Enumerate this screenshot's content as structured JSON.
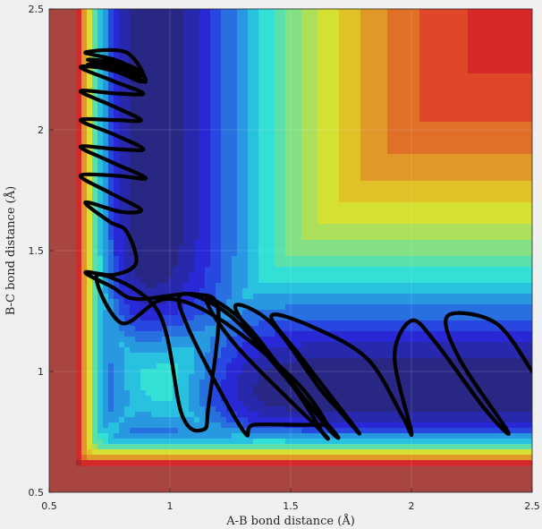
{
  "chart_data": {
    "type": "heatmap",
    "title": "",
    "xlabel": "A-B bond distance (Å)",
    "ylabel": "B-C bond distance (Å)",
    "xlim": [
      0.5,
      2.5
    ],
    "ylim": [
      0.5,
      2.5
    ],
    "xticks": [
      0.5,
      1,
      1.5,
      2,
      2.5
    ],
    "yticks": [
      0.5,
      1,
      1.5,
      2,
      2.5
    ],
    "xtick_labels": [
      "0.5",
      "1",
      "1.5",
      "2",
      "2.5"
    ],
    "ytick_labels": [
      "0.5",
      "1",
      "1.5",
      "2",
      "2.5"
    ],
    "grid": true,
    "colormap": "jet",
    "surface": "Potential energy surface (filled contours), minimum valley near A-B ≈ 1.9, B-C ≈ 0.93",
    "trajectory": {
      "color": "#000000",
      "points": [
        [
          2.5,
          1.0
        ],
        [
          2.35,
          1.2
        ],
        [
          2.15,
          1.23
        ],
        [
          2.2,
          1.05
        ],
        [
          2.4,
          0.75
        ],
        [
          2.3,
          0.85
        ],
        [
          2.1,
          1.12
        ],
        [
          2.0,
          1.21
        ],
        [
          1.93,
          1.06
        ],
        [
          2.0,
          0.75
        ],
        [
          1.96,
          0.82
        ],
        [
          1.82,
          1.05
        ],
        [
          1.6,
          1.18
        ],
        [
          1.42,
          1.23
        ],
        [
          1.55,
          1.05
        ],
        [
          1.78,
          0.75
        ],
        [
          1.7,
          0.84
        ],
        [
          1.62,
          0.93
        ],
        [
          1.42,
          1.2
        ],
        [
          1.27,
          1.27
        ],
        [
          1.4,
          1.07
        ],
        [
          1.68,
          0.75
        ],
        [
          1.65,
          0.77
        ],
        [
          1.5,
          0.96
        ],
        [
          1.3,
          1.21
        ],
        [
          1.15,
          1.3
        ],
        [
          1.28,
          1.1
        ],
        [
          1.62,
          0.76
        ],
        [
          1.63,
          0.75
        ],
        [
          1.5,
          0.95
        ],
        [
          1.25,
          1.23
        ],
        [
          1.05,
          1.32
        ],
        [
          1.08,
          1.17
        ],
        [
          1.3,
          0.76
        ],
        [
          1.35,
          0.78
        ],
        [
          1.6,
          0.78
        ],
        [
          1.64,
          0.8
        ],
        [
          1.5,
          0.98
        ],
        [
          1.2,
          1.22
        ],
        [
          0.98,
          1.3
        ],
        [
          0.8,
          1.2
        ],
        [
          0.7,
          1.4
        ],
        [
          0.95,
          1.25
        ],
        [
          1.05,
          0.82
        ],
        [
          1.14,
          0.76
        ],
        [
          1.16,
          0.86
        ],
        [
          1.2,
          1.25
        ],
        [
          1.1,
          1.32
        ],
        [
          0.86,
          1.3
        ],
        [
          0.76,
          1.35
        ],
        [
          0.65,
          1.41
        ],
        [
          0.77,
          1.4
        ],
        [
          0.86,
          1.45
        ],
        [
          0.82,
          1.58
        ],
        [
          0.75,
          1.62
        ],
        [
          0.65,
          1.7
        ],
        [
          0.8,
          1.66
        ],
        [
          0.88,
          1.67
        ],
        [
          0.75,
          1.74
        ],
        [
          0.63,
          1.81
        ],
        [
          0.78,
          1.81
        ],
        [
          0.9,
          1.8
        ],
        [
          0.75,
          1.87
        ],
        [
          0.63,
          1.93
        ],
        [
          0.78,
          1.92
        ],
        [
          0.89,
          1.92
        ],
        [
          0.77,
          1.98
        ],
        [
          0.63,
          2.04
        ],
        [
          0.78,
          2.04
        ],
        [
          0.88,
          2.04
        ],
        [
          0.76,
          2.1
        ],
        [
          0.63,
          2.16
        ],
        [
          0.78,
          2.15
        ],
        [
          0.89,
          2.15
        ],
        [
          0.77,
          2.2
        ],
        [
          0.63,
          2.26
        ],
        [
          0.79,
          2.25
        ],
        [
          0.88,
          2.24
        ],
        [
          0.77,
          2.29
        ],
        [
          0.65,
          2.32
        ],
        [
          0.82,
          2.32
        ],
        [
          0.9,
          2.2
        ],
        [
          0.8,
          2.25
        ],
        [
          0.66,
          2.29
        ],
        [
          0.8,
          2.27
        ],
        [
          0.88,
          2.2
        ],
        [
          0.78,
          2.24
        ],
        [
          0.66,
          2.27
        ],
        [
          0.82,
          2.26
        ],
        [
          0.89,
          2.22
        ]
      ]
    }
  }
}
